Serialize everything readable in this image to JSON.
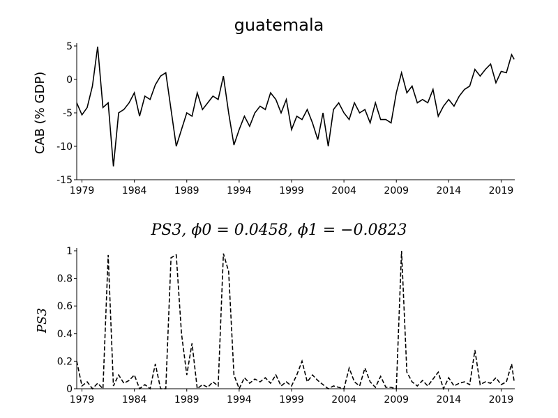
{
  "chart_data": [
    {
      "type": "line",
      "title": "guatemala",
      "ylabel": "CAB (% GDP)",
      "color": "#000000",
      "linestyle": "solid",
      "x": [
        1978.5,
        1979,
        1979.5,
        1980,
        1980.5,
        1981,
        1981.5,
        1982,
        1982.5,
        1983,
        1983.5,
        1984,
        1984.5,
        1985,
        1985.5,
        1986,
        1986.5,
        1987,
        1987.5,
        1988,
        1988.5,
        1989,
        1989.5,
        1990,
        1990.5,
        1991,
        1991.5,
        1992,
        1992.5,
        1993,
        1993.5,
        1994,
        1994.5,
        1995,
        1995.5,
        1996,
        1996.5,
        1997,
        1997.5,
        1998,
        1998.5,
        1999,
        1999.5,
        2000,
        2000.5,
        2001,
        2001.5,
        2002,
        2002.5,
        2003,
        2003.5,
        2004,
        2004.5,
        2005,
        2005.5,
        2006,
        2006.5,
        2007,
        2007.5,
        2008,
        2008.5,
        2009,
        2009.5,
        2010,
        2010.5,
        2011,
        2011.5,
        2012,
        2012.5,
        2013,
        2013.5,
        2014,
        2014.5,
        2015,
        2015.5,
        2016,
        2016.5,
        2017,
        2017.5,
        2018,
        2018.5,
        2019,
        2019.5,
        2020,
        2020.25
      ],
      "values": [
        -3.5,
        -5.3,
        -4.2,
        -1.0,
        4.9,
        -4.2,
        -3.5,
        -13.0,
        -5.0,
        -4.5,
        -3.5,
        -2.0,
        -5.5,
        -2.5,
        -3.0,
        -0.8,
        0.5,
        1.0,
        -4.5,
        -10.0,
        -7.5,
        -5.0,
        -5.5,
        -2.0,
        -4.5,
        -3.5,
        -2.5,
        -3.0,
        0.5,
        -5.0,
        -9.8,
        -7.5,
        -5.5,
        -7.0,
        -5.0,
        -4.0,
        -4.5,
        -2.0,
        -3.0,
        -5.0,
        -3.0,
        -7.5,
        -5.5,
        -6.0,
        -4.5,
        -6.5,
        -9.0,
        -5.0,
        -10.0,
        -4.5,
        -3.5,
        -5.0,
        -6.0,
        -3.5,
        -5.0,
        -4.5,
        -6.5,
        -3.5,
        -6.0,
        -6.0,
        -6.5,
        -2.0,
        1.0,
        -2.0,
        -1.0,
        -3.5,
        -3.0,
        -3.5,
        -1.5,
        -5.5,
        -4.0,
        -3.0,
        -4.0,
        -2.5,
        -1.5,
        -1.0,
        1.5,
        0.5,
        1.5,
        2.3,
        -0.5,
        1.2,
        1.0,
        3.7,
        3.0
      ],
      "xlim": [
        1978.5,
        2020.3
      ],
      "ylim": [
        -15,
        5
      ],
      "xticks": [
        1979,
        1984,
        1989,
        1994,
        1999,
        2004,
        2009,
        2014,
        2019
      ],
      "yticks": [
        -15,
        -10,
        -5,
        0,
        5
      ]
    },
    {
      "type": "line",
      "title": "PS3, ϕ0 = 0.0458, ϕ1 = −0.0823",
      "ylabel": "PS3",
      "color": "#000000",
      "linestyle": "dashed",
      "x": [
        1978.5,
        1979,
        1979.5,
        1980,
        1980.5,
        1981,
        1981.5,
        1982,
        1982.5,
        1983,
        1983.5,
        1984,
        1984.5,
        1985,
        1985.5,
        1986,
        1986.5,
        1987,
        1987.5,
        1988,
        1988.5,
        1989,
        1989.5,
        1990,
        1990.5,
        1991,
        1991.5,
        1992,
        1992.5,
        1993,
        1993.5,
        1994,
        1994.5,
        1995,
        1995.5,
        1996,
        1996.5,
        1997,
        1997.5,
        1998,
        1998.5,
        1999,
        1999.5,
        2000,
        2000.5,
        2001,
        2001.5,
        2002,
        2002.5,
        2003,
        2003.5,
        2004,
        2004.5,
        2005,
        2005.5,
        2006,
        2006.5,
        2007,
        2007.5,
        2008,
        2008.5,
        2009,
        2009.5,
        2010,
        2010.5,
        2011,
        2011.5,
        2012,
        2012.5,
        2013,
        2013.5,
        2014,
        2014.5,
        2015,
        2015.5,
        2016,
        2016.5,
        2017,
        2017.5,
        2018,
        2018.5,
        2019,
        2019.5,
        2020,
        2020.25
      ],
      "values": [
        0.2,
        0.02,
        0.05,
        0.0,
        0.04,
        0.0,
        0.97,
        0.02,
        0.1,
        0.04,
        0.06,
        0.1,
        0.0,
        0.03,
        0.0,
        0.18,
        0.0,
        0.0,
        0.95,
        0.97,
        0.4,
        0.1,
        0.33,
        0.0,
        0.03,
        0.01,
        0.05,
        0.02,
        0.98,
        0.85,
        0.1,
        0.0,
        0.08,
        0.04,
        0.07,
        0.05,
        0.08,
        0.04,
        0.1,
        0.02,
        0.05,
        0.02,
        0.1,
        0.2,
        0.05,
        0.1,
        0.06,
        0.03,
        0.0,
        0.02,
        0.01,
        0.0,
        0.15,
        0.05,
        0.02,
        0.15,
        0.05,
        0.01,
        0.09,
        0.01,
        0.01,
        0.0,
        1.0,
        0.12,
        0.05,
        0.02,
        0.06,
        0.02,
        0.07,
        0.12,
        0.0,
        0.08,
        0.02,
        0.04,
        0.05,
        0.03,
        0.28,
        0.03,
        0.05,
        0.04,
        0.08,
        0.03,
        0.05,
        0.18,
        0.05
      ],
      "xlim": [
        1978.5,
        2020.3
      ],
      "ylim": [
        0,
        1
      ],
      "xticks": [
        1979,
        1984,
        1989,
        1994,
        1999,
        2004,
        2009,
        2014,
        2019
      ],
      "yticks": [
        0,
        0.2,
        0.4,
        0.6,
        0.8,
        1
      ]
    }
  ]
}
